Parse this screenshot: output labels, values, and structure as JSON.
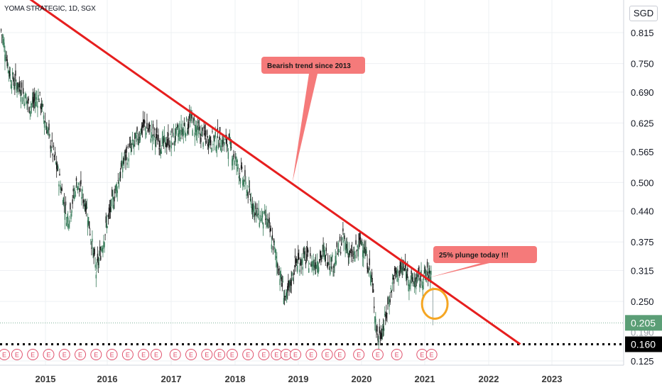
{
  "chart_data": {
    "type": "candlestick",
    "symbol_title": "YOMA STRATEGIC, 1D, SGX",
    "currency": "SGD",
    "x_ticks": [
      "2015",
      "2016",
      "2017",
      "2018",
      "2019",
      "2020",
      "2021",
      "2022",
      "2023"
    ],
    "y_ticks": [
      "0.815",
      "0.750",
      "0.690",
      "0.625",
      "0.565",
      "0.500",
      "0.440",
      "0.375",
      "0.315",
      "0.250",
      "0.125"
    ],
    "y_ticks_partial": [
      "0.190"
    ],
    "xlim": [
      2014.25,
      2024.0
    ],
    "price_series": {
      "name": "",
      "x": [
        2014.3,
        2014.45,
        2014.6,
        2014.75,
        2014.9,
        2015.05,
        2015.2,
        2015.35,
        2015.5,
        2015.65,
        2015.8,
        2015.95,
        2016.1,
        2016.25,
        2016.4,
        2016.55,
        2016.7,
        2016.85,
        2017.0,
        2017.15,
        2017.3,
        2017.45,
        2017.6,
        2017.75,
        2017.9,
        2018.05,
        2018.2,
        2018.35,
        2018.5,
        2018.65,
        2018.8,
        2018.95,
        2019.1,
        2019.25,
        2019.4,
        2019.55,
        2019.7,
        2019.85,
        2020.0,
        2020.15,
        2020.25,
        2020.35,
        2020.5,
        2020.65,
        2020.8,
        2020.95,
        2021.1
      ],
      "y": [
        0.82,
        0.72,
        0.7,
        0.66,
        0.68,
        0.6,
        0.52,
        0.42,
        0.5,
        0.45,
        0.31,
        0.4,
        0.48,
        0.55,
        0.58,
        0.62,
        0.6,
        0.58,
        0.59,
        0.61,
        0.63,
        0.6,
        0.59,
        0.59,
        0.58,
        0.53,
        0.48,
        0.43,
        0.42,
        0.34,
        0.25,
        0.33,
        0.34,
        0.33,
        0.35,
        0.33,
        0.38,
        0.34,
        0.38,
        0.3,
        0.17,
        0.2,
        0.3,
        0.32,
        0.29,
        0.3,
        0.31
      ]
    },
    "last_low_point": {
      "x": 2021.12,
      "y": 0.2
    },
    "trendline": {
      "x": [
        2014.6,
        2022.5
      ],
      "y": [
        0.9,
        0.16
      ],
      "color": "#e61e1e"
    },
    "support_line": {
      "y": 0.16,
      "style": "dotted"
    },
    "price_labels": [
      {
        "value": "0.205",
        "color": "#5b9e76"
      },
      {
        "value": "0.160",
        "color": "#000000"
      }
    ],
    "annotations": [
      {
        "text": "Bearish trend since 2013",
        "target_x": 2018.9,
        "target_y": 0.5
      },
      {
        "text": "25% plunge today !!!",
        "target_x": 2021.05,
        "target_y": 0.3
      }
    ],
    "earnings_markers": {
      "label": "E",
      "x": [
        2014.35,
        2014.55,
        2014.8,
        2015.05,
        2015.3,
        2015.55,
        2015.8,
        2016.05,
        2016.3,
        2016.55,
        2016.75,
        2017.05,
        2017.3,
        2017.55,
        2017.75,
        2017.95,
        2018.2,
        2018.45,
        2018.65,
        2018.8,
        2018.95,
        2019.2,
        2019.45,
        2019.65,
        2019.95,
        2020.25,
        2020.55,
        2020.95,
        2021.1
      ]
    },
    "colors": {
      "up": "#26a69a",
      "down": "#1b1b1b",
      "grid": "#eef0f3",
      "highlight_circle": "#f5a623",
      "callout_bg": "#f57a7a"
    },
    "grid": true
  }
}
